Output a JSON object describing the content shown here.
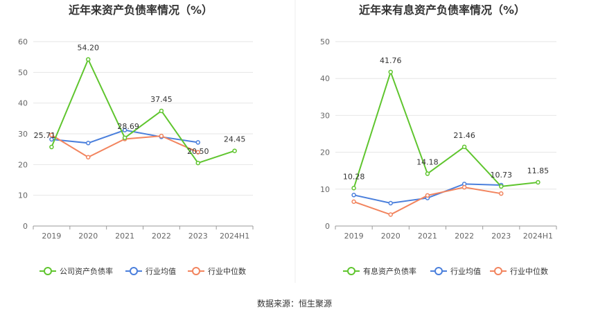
{
  "source": "数据来源：恒生聚源",
  "colors": {
    "main": "#5fc52e",
    "avg": "#4a7fdc",
    "median": "#f2845e",
    "grid": "#e6e6e6",
    "axis": "#9a9a9a"
  },
  "chart_data": [
    {
      "type": "line",
      "title": "近年来资产负债率情况（%）",
      "categories": [
        "2019",
        "2020",
        "2021",
        "2022",
        "2023",
        "2024H1"
      ],
      "ylim": [
        0,
        60
      ],
      "yticks": [
        "0",
        "10",
        "20",
        "30",
        "40",
        "50",
        "60"
      ],
      "series": [
        {
          "name": "公司资产负债率",
          "values": [
            25.71,
            54.2,
            28.69,
            37.45,
            20.5,
            24.45
          ],
          "labels": [
            "25.71",
            "54.20",
            "28.69",
            "37.45",
            "20.50",
            "24.45"
          ]
        },
        {
          "name": "行业均值",
          "values": [
            28.2,
            27.0,
            31.2,
            29.0,
            27.2,
            null
          ]
        },
        {
          "name": "行业中位数",
          "values": [
            29.6,
            22.4,
            28.3,
            29.3,
            24.0,
            null
          ]
        }
      ]
    },
    {
      "type": "line",
      "title": "近年来有息资产负债率情况（%）",
      "categories": [
        "2019",
        "2020",
        "2021",
        "2022",
        "2023",
        "2024H1"
      ],
      "ylim": [
        0,
        50
      ],
      "yticks": [
        "0",
        "10",
        "20",
        "30",
        "40",
        "50"
      ],
      "series": [
        {
          "name": "有息资产负债率",
          "values": [
            10.28,
            41.76,
            14.18,
            21.46,
            10.73,
            11.85
          ],
          "labels": [
            "10.28",
            "41.76",
            "14.18",
            "21.46",
            "10.73",
            "11.85"
          ]
        },
        {
          "name": "行业均值",
          "values": [
            8.4,
            6.2,
            7.6,
            11.4,
            11.1,
            null
          ]
        },
        {
          "name": "行业中位数",
          "values": [
            6.6,
            3.1,
            8.3,
            10.5,
            8.8,
            null
          ]
        }
      ]
    }
  ]
}
